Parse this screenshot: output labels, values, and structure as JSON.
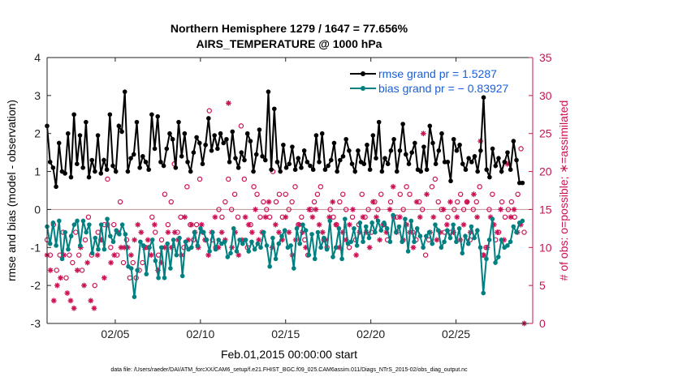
{
  "chart_data": {
    "type": "line",
    "title_line1": "Northern Hemisphere 1279 / 1647 = 77.656%",
    "title_line2": "AIRS_TEMPERATURE @ 1000 hPa",
    "xlabel": "Feb.01,2015 00:00:00 start",
    "ylabel_left": "rmse and bias (model - observation)",
    "ylabel_right": "# of obs: o=possible; ∗=assimilated",
    "footnote": "data file: /Users/raeder/DAI/ATM_forcXX/CAM6_setup/f.e21.FHIST_BGC.f09_025.CAM6assim.011/Diags_NTrS_2015-02/obs_diag_output.nc",
    "xlim": [
      1.0,
      29.5
    ],
    "ylim_left": [
      -3,
      4
    ],
    "ylim_right": [
      0,
      35
    ],
    "xticks": [
      5,
      10,
      15,
      20,
      25
    ],
    "xtick_labels": [
      "02/05",
      "02/10",
      "02/15",
      "02/20",
      "02/25"
    ],
    "yticks_left": [
      "4",
      "3",
      "2",
      "1",
      "0",
      "-1",
      "-2",
      "-3"
    ],
    "yticks_right": [
      "35",
      "30",
      "25",
      "20",
      "15",
      "10",
      "5",
      "0"
    ],
    "colors": {
      "rmse": "#000000",
      "bias": "#008080",
      "obs": "#cc1155",
      "zero": "#c8a0a0",
      "legend_text": "#1a5fd6"
    },
    "series": [
      {
        "name": "rmse grand pr = 1.5287",
        "legend": "rmse grand pr = 1.5287",
        "values": [
          2.2,
          1.25,
          1.1,
          0.6,
          1.75,
          1.0,
          0.95,
          2.0,
          0.85,
          2.5,
          1.2,
          1.95,
          1.1,
          2.3,
          0.85,
          1.3,
          1.0,
          1.95,
          0.95,
          1.3,
          1.05,
          2.5,
          1.15,
          1.0,
          2.2,
          2.05,
          3.1,
          1.0,
          1.35,
          1.45,
          2.3,
          1.1,
          1.4,
          1.25,
          1.05,
          2.5,
          1.6,
          2.45,
          1.25,
          1.15,
          1.6,
          2.0,
          1.85,
          1.1,
          2.3,
          1.4,
          2.0,
          1.25,
          1.0,
          1.5,
          1.9,
          1.75,
          1.2,
          1.7,
          2.4,
          1.55,
          1.95,
          1.6,
          2.0,
          1.75,
          1.85,
          1.25,
          2.05,
          1.35,
          1.1,
          1.5,
          1.3,
          2.0,
          1.8,
          1.0,
          1.45,
          2.1,
          1.4,
          1.3,
          3.1,
          1.05,
          2.65,
          1.25,
          1.0,
          1.7,
          1.1,
          1.2,
          1.65,
          1.05,
          1.35,
          1.1,
          1.55,
          1.25,
          1.15,
          1.05,
          1.95,
          1.25,
          2.0,
          1.05,
          1.15,
          1.3,
          1.75,
          1.0,
          1.3,
          1.4,
          1.85,
          1.55,
          1.2,
          1.0,
          1.55,
          1.25,
          1.2,
          1.7,
          1.05,
          1.95,
          1.35,
          2.3,
          1.0,
          1.35,
          1.2,
          1.55,
          1.85,
          1.0,
          1.55,
          2.25,
          1.45,
          1.2,
          1.5,
          1.75,
          1.05,
          1.0,
          1.65,
          1.05,
          2.2,
          1.75,
          1.2,
          1.55,
          2.0,
          1.25,
          1.25,
          0.75,
          1.85,
          1.55,
          1.7,
          1.2,
          1.05,
          1.35,
          1.25,
          1.4,
          1.0,
          1.55,
          2.95,
          1.05,
          0.85,
          1.6,
          1.15,
          1.35,
          1.0,
          1.25,
          1.5,
          1.05,
          1.8,
          1.3,
          0.7,
          0.7
        ]
      },
      {
        "name": "bias grand pr = -0.83927",
        "legend": "bias grand pr = − 0.83927",
        "values": [
          -0.45,
          -0.9,
          -0.35,
          -0.95,
          -0.3,
          -1.3,
          -0.6,
          -1.05,
          -0.7,
          -0.4,
          -0.3,
          -0.95,
          -0.3,
          -0.6,
          -0.4,
          -1.15,
          -0.75,
          -1.05,
          -0.4,
          -1.05,
          -0.25,
          -0.7,
          -0.85,
          -0.55,
          -0.65,
          -0.4,
          -0.65,
          -1.5,
          -1.55,
          -2.3,
          -1.6,
          -0.85,
          -0.95,
          -1.7,
          -1.0,
          -0.8,
          -1.35,
          -1.8,
          -1.0,
          -1.8,
          -0.9,
          -1.55,
          -0.8,
          -1.2,
          -0.75,
          -1.75,
          -0.85,
          -1.05,
          -1.0,
          -0.6,
          -0.95,
          -0.5,
          -0.6,
          -0.8,
          -1.1,
          -0.6,
          -1.05,
          -0.8,
          -0.9,
          -0.85,
          -1.25,
          -1.15,
          -0.5,
          -1.1,
          -0.8,
          -0.9,
          -0.8,
          -1.1,
          -0.85,
          -1.05,
          -0.9,
          -1.0,
          -0.6,
          -0.95,
          -1.5,
          -0.75,
          -1.3,
          -0.9,
          -0.7,
          -0.55,
          -1.0,
          -0.95,
          -1.55,
          -0.5,
          -0.9,
          -0.4,
          -0.55,
          -1.2,
          -0.65,
          -1.3,
          -0.6,
          -1.0,
          -0.75,
          -1.05,
          -0.3,
          -1.25,
          -1.0,
          -0.5,
          -1.3,
          -0.25,
          -0.9,
          -0.85,
          -0.5,
          -0.95,
          -0.35,
          -0.85,
          -0.45,
          -0.75,
          -0.35,
          -0.6,
          -0.3,
          -0.55,
          -0.35,
          -0.5,
          -0.85,
          -0.15,
          -0.6,
          -0.45,
          -0.85,
          -0.25,
          -1.1,
          -0.3,
          -0.85,
          -0.5,
          -0.7,
          -1.0,
          -0.7,
          -0.6,
          -0.9,
          -0.4,
          -0.55,
          -1.0,
          -0.85,
          -0.55,
          -0.75,
          -0.4,
          -0.85,
          -0.5,
          -1.15,
          -0.7,
          -0.9,
          -0.45,
          -0.75,
          -0.55,
          -1.0,
          -2.2,
          -1.3,
          -0.8,
          -0.25,
          -1.4,
          -1.25,
          -0.8,
          -1.0,
          -0.95,
          -0.85,
          -0.45,
          -0.6,
          -0.35,
          -0.3
        ]
      },
      {
        "name": "possible obs (o)",
        "marker": "circle",
        "values": [
          11,
          9,
          13,
          7,
          9,
          12,
          6,
          9,
          8,
          12,
          9,
          7,
          11,
          14,
          9,
          5,
          12,
          11,
          13,
          19,
          10,
          13,
          9,
          16,
          8,
          11,
          6,
          8,
          6,
          7,
          8,
          10,
          10,
          14,
          12,
          9,
          11,
          17,
          13,
          16,
          21,
          12,
          14,
          10,
          18,
          13,
          11,
          13,
          19,
          12,
          11,
          28,
          11,
          10,
          15,
          14,
          16,
          19,
          15,
          17,
          14,
          26,
          19,
          10,
          13,
          18,
          17,
          14,
          16,
          15,
          14,
          20,
          16,
          17,
          14,
          17,
          15,
          16,
          18,
          13,
          14,
          11,
          9,
          15,
          16,
          17,
          18,
          11,
          10,
          15,
          14,
          13,
          16,
          17,
          15,
          10,
          14,
          11,
          13,
          17,
          14,
          15,
          12,
          16,
          15,
          17,
          13,
          11,
          16,
          14,
          14,
          17,
          15,
          18,
          17,
          12,
          11,
          16,
          15,
          9,
          11,
          18,
          19,
          16,
          15,
          12,
          14,
          12,
          15,
          16,
          17,
          15,
          16,
          11,
          15,
          16,
          18,
          9,
          10,
          15,
          17,
          11,
          12,
          16,
          14,
          15,
          16,
          14,
          17,
          23,
          12
        ]
      },
      {
        "name": "assimilated obs (*)",
        "marker": "asterisk",
        "values": [
          9,
          7,
          3,
          5,
          6,
          9,
          4,
          3,
          2,
          7,
          10,
          5,
          8,
          3,
          2,
          9,
          11,
          6,
          13,
          8,
          9,
          12,
          10,
          10,
          10,
          9,
          11,
          13,
          12,
          10,
          11,
          9,
          13,
          7,
          8,
          10,
          12,
          10,
          12,
          11,
          9,
          14,
          11,
          13,
          12,
          10,
          13,
          11,
          9,
          12,
          14,
          10,
          12,
          11,
          29,
          10,
          12,
          9,
          11,
          14,
          13,
          12,
          15,
          11,
          12,
          14,
          16,
          10,
          13,
          12,
          11,
          14,
          12,
          9,
          11,
          13,
          12,
          10,
          15,
          14,
          15,
          13,
          12,
          11,
          14,
          16,
          13,
          10,
          12,
          11,
          13,
          15,
          9,
          12,
          14,
          12,
          10,
          16,
          14,
          11,
          13,
          12,
          15,
          18,
          12,
          14,
          11,
          13,
          12,
          10,
          16,
          14,
          25,
          17,
          12,
          14,
          11,
          12,
          15,
          13,
          16,
          12,
          14,
          11,
          13,
          16,
          12,
          17,
          14,
          24,
          9,
          10,
          14,
          13,
          12,
          15,
          11,
          21,
          14,
          15,
          12,
          13,
          0
        ]
      }
    ]
  }
}
